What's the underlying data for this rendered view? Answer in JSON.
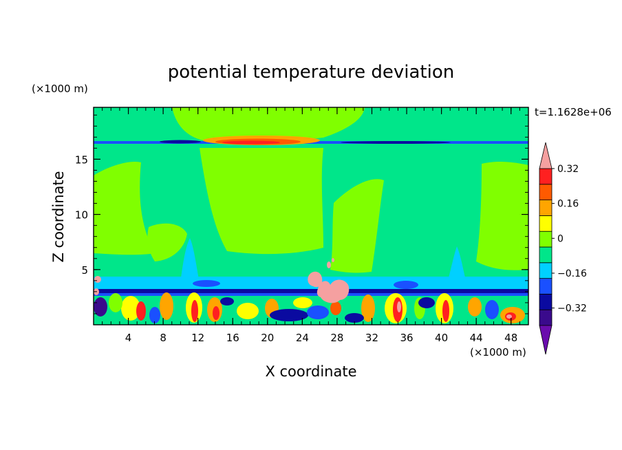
{
  "chart_data": {
    "type": "heatmap",
    "title": "potential temperature deviation",
    "xlabel": "X coordinate",
    "ylabel": "Z coordinate",
    "x_unit": "(×1000 m)",
    "y_unit": "(×1000 m)",
    "time_label": "t=1.1628e+06",
    "xlim": [
      0,
      50
    ],
    "ylim": [
      0,
      19.7
    ],
    "x_ticks": [
      4,
      8,
      12,
      16,
      20,
      24,
      28,
      32,
      36,
      40,
      44,
      48
    ],
    "x_tick_labels": [
      "4",
      "8",
      "12",
      "16",
      "20",
      "24",
      "28",
      "32",
      "36",
      "40",
      "44",
      "48"
    ],
    "y_ticks": [
      5,
      10,
      15
    ],
    "y_tick_labels": [
      "5",
      "10",
      "15"
    ],
    "colorbar": {
      "levels": [
        -0.48,
        -0.4,
        -0.32,
        -0.24,
        -0.16,
        -0.08,
        0,
        0.08,
        0.16,
        0.24,
        0.32,
        0.4
      ],
      "labels": [
        "0.32",
        "0.16",
        "0",
        "−0.16",
        "−0.32"
      ],
      "label_values": [
        0.32,
        0.16,
        0,
        -0.16,
        -0.32
      ],
      "colors_low_to_high": [
        "#6a0dad",
        "#3a0a8c",
        "#0a0aa0",
        "#1a50ff",
        "#00d0ff",
        "#00e68a",
        "#80ff00",
        "#ffff00",
        "#ffa500",
        "#ff5a00",
        "#ff2020",
        "#f5a0a0"
      ]
    },
    "field_colors": {
      "background_near_zero_negative": "#00e68a",
      "near_zero_positive": "#80ff00",
      "warm_high": "#ff2020",
      "cold_low": "#0a0aa0",
      "extreme_positive": "#f5a0a0"
    }
  }
}
